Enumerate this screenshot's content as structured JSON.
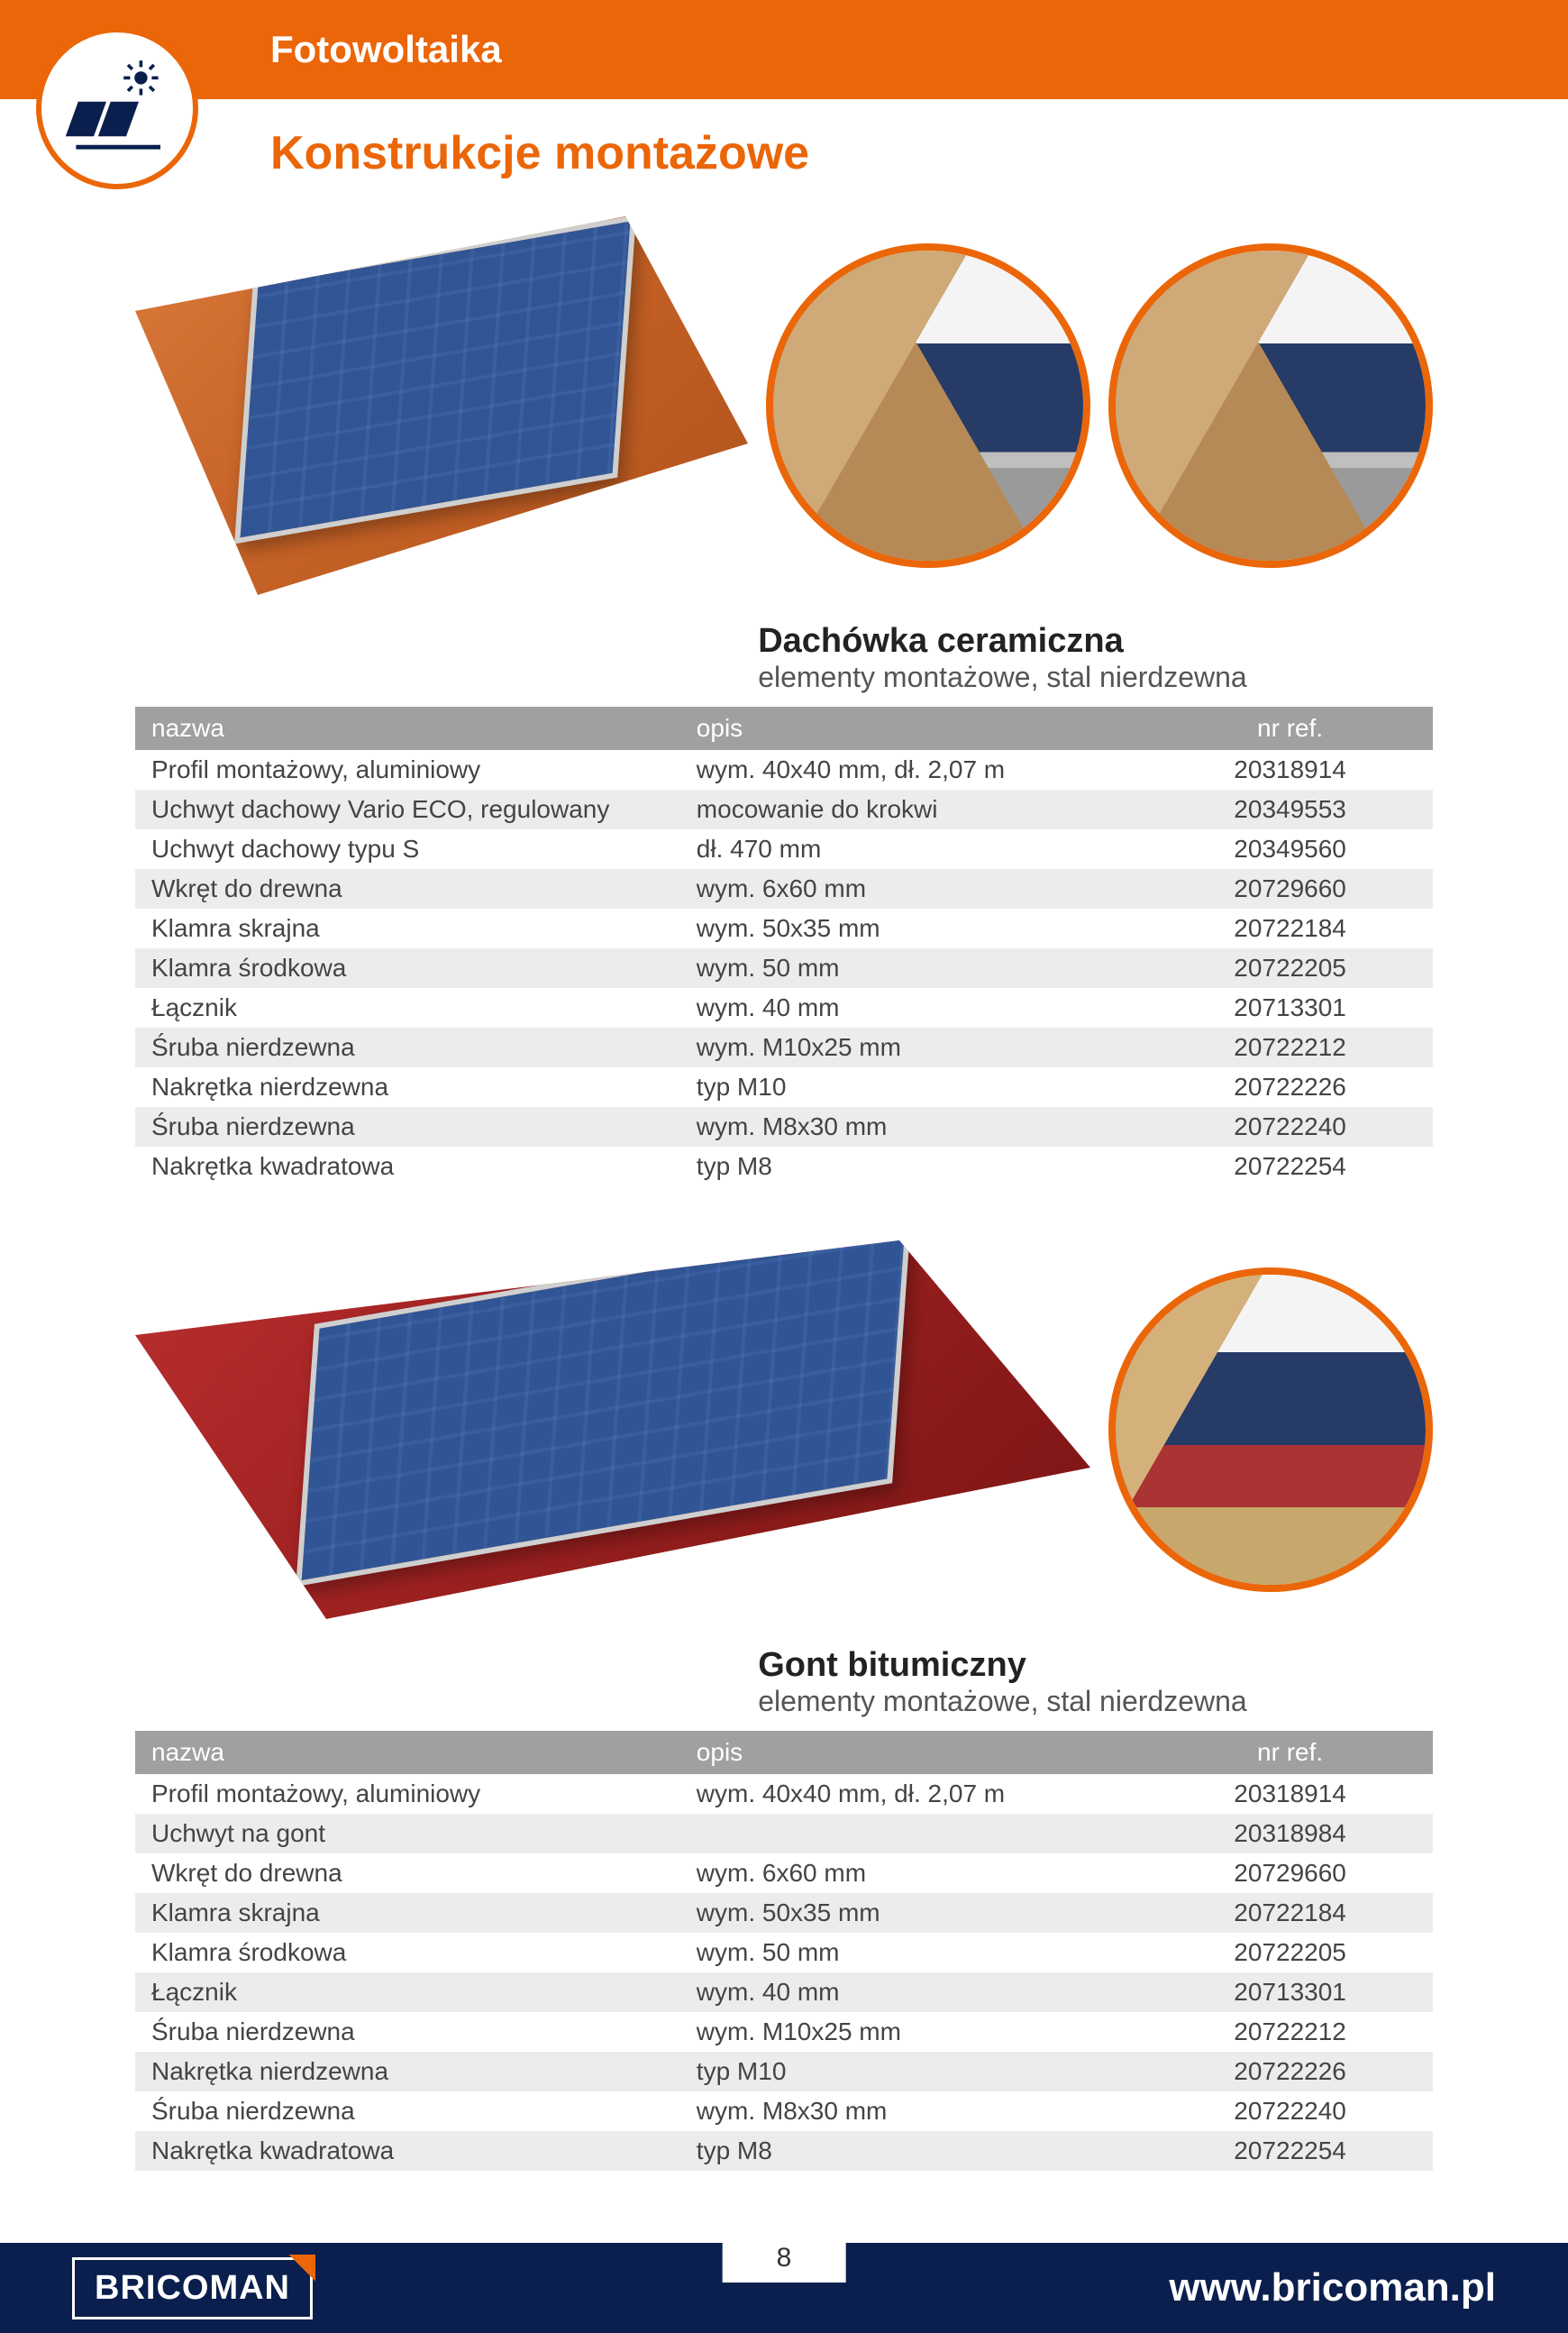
{
  "brand": {
    "name": "BRICOMAN",
    "url": "www.bricoman.pl",
    "accent_color": "#eb6608",
    "footer_bg": "#0a1f4d"
  },
  "page": {
    "category": "Fotowoltaika",
    "subtitle": "Konstrukcje montażowe",
    "number": "8"
  },
  "sections": [
    {
      "id": "ceramic",
      "title": "Dachówka ceramiczna",
      "subtitle": "elementy montażowe, stal nierdzewna",
      "imagery": {
        "style": "tile",
        "detail_circles": 2,
        "base_color": "#c86428"
      },
      "table": {
        "columns": [
          "nazwa",
          "opis",
          "nr ref."
        ],
        "rows": [
          [
            "Profil montażowy, aluminiowy",
            "wym. 40x40 mm, dł. 2,07 m",
            "20318914"
          ],
          [
            "Uchwyt dachowy Vario ECO, regulowany",
            "mocowanie do krokwi",
            "20349553"
          ],
          [
            "Uchwyt dachowy typu S",
            "dł. 470 mm",
            "20349560"
          ],
          [
            "Wkręt do drewna",
            "wym. 6x60 mm",
            "20729660"
          ],
          [
            "Klamra skrajna",
            "wym. 50x35 mm",
            "20722184"
          ],
          [
            "Klamra środkowa",
            "wym. 50 mm",
            "20722205"
          ],
          [
            "Łącznik",
            "wym. 40 mm",
            "20713301"
          ],
          [
            "Śruba nierdzewna",
            "wym. M10x25 mm",
            "20722212"
          ],
          [
            "Nakrętka nierdzewna",
            "typ M10",
            "20722226"
          ],
          [
            "Śruba nierdzewna",
            "wym. M8x30 mm",
            "20722240"
          ],
          [
            "Nakrętka kwadratowa",
            "typ M8",
            "20722254"
          ]
        ]
      }
    },
    {
      "id": "bitumen",
      "title": "Gont bitumiczny",
      "subtitle": "elementy montażowe, stal nierdzewna",
      "imagery": {
        "style": "shingle",
        "detail_circles": 1,
        "base_color": "#a02222"
      },
      "table": {
        "columns": [
          "nazwa",
          "opis",
          "nr ref."
        ],
        "rows": [
          [
            "Profil montażowy, aluminiowy",
            "wym. 40x40 mm, dł. 2,07 m",
            "20318914"
          ],
          [
            "Uchwyt na gont",
            "",
            "20318984"
          ],
          [
            "Wkręt do drewna",
            "wym. 6x60 mm",
            "20729660"
          ],
          [
            "Klamra skrajna",
            "wym. 50x35 mm",
            "20722184"
          ],
          [
            "Klamra środkowa",
            "wym. 50 mm",
            "20722205"
          ],
          [
            "Łącznik",
            "wym. 40 mm",
            "20713301"
          ],
          [
            "Śruba nierdzewna",
            "wym. M10x25 mm",
            "20722212"
          ],
          [
            "Nakrętka nierdzewna",
            "typ M10",
            "20722226"
          ],
          [
            "Śruba nierdzewna",
            "wym. M8x30 mm",
            "20722240"
          ],
          [
            "Nakrętka kwadratowa",
            "typ M8",
            "20722254"
          ]
        ]
      }
    }
  ]
}
